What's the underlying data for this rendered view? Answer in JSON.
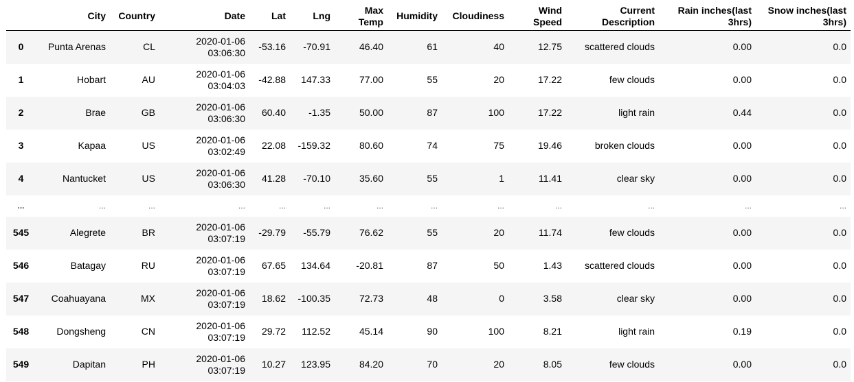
{
  "table": {
    "columns": [
      "",
      "City",
      "Country",
      "Date",
      "Lat",
      "Lng",
      "Max Temp",
      "Humidity",
      "Cloudiness",
      "Wind Speed",
      "Current Description",
      "Rain inches(last 3hrs)",
      "Snow inches(last 3hrs)"
    ],
    "rows": [
      [
        "0",
        "Punta Arenas",
        "CL",
        "2020-01-06 03:06:30",
        "-53.16",
        "-70.91",
        "46.40",
        "61",
        "40",
        "12.75",
        "scattered clouds",
        "0.00",
        "0.0"
      ],
      [
        "1",
        "Hobart",
        "AU",
        "2020-01-06 03:04:03",
        "-42.88",
        "147.33",
        "77.00",
        "55",
        "20",
        "17.22",
        "few clouds",
        "0.00",
        "0.0"
      ],
      [
        "2",
        "Brae",
        "GB",
        "2020-01-06 03:06:30",
        "60.40",
        "-1.35",
        "50.00",
        "87",
        "100",
        "17.22",
        "light rain",
        "0.44",
        "0.0"
      ],
      [
        "3",
        "Kapaa",
        "US",
        "2020-01-06 03:02:49",
        "22.08",
        "-159.32",
        "80.60",
        "74",
        "75",
        "19.46",
        "broken clouds",
        "0.00",
        "0.0"
      ],
      [
        "4",
        "Nantucket",
        "US",
        "2020-01-06 03:06:30",
        "41.28",
        "-70.10",
        "35.60",
        "55",
        "1",
        "11.41",
        "clear sky",
        "0.00",
        "0.0"
      ],
      [
        "...",
        "...",
        "...",
        "...",
        "...",
        "...",
        "...",
        "...",
        "...",
        "...",
        "...",
        "...",
        "..."
      ],
      [
        "545",
        "Alegrete",
        "BR",
        "2020-01-06 03:07:19",
        "-29.79",
        "-55.79",
        "76.62",
        "55",
        "20",
        "11.74",
        "few clouds",
        "0.00",
        "0.0"
      ],
      [
        "546",
        "Batagay",
        "RU",
        "2020-01-06 03:07:19",
        "67.65",
        "134.64",
        "-20.81",
        "87",
        "50",
        "1.43",
        "scattered clouds",
        "0.00",
        "0.0"
      ],
      [
        "547",
        "Coahuayana",
        "MX",
        "2020-01-06 03:07:19",
        "18.62",
        "-100.35",
        "72.73",
        "48",
        "0",
        "3.58",
        "clear sky",
        "0.00",
        "0.0"
      ],
      [
        "548",
        "Dongsheng",
        "CN",
        "2020-01-06 03:07:19",
        "29.72",
        "112.52",
        "45.14",
        "90",
        "100",
        "8.21",
        "light rain",
        "0.19",
        "0.0"
      ],
      [
        "549",
        "Dapitan",
        "PH",
        "2020-01-06 03:07:19",
        "10.27",
        "123.95",
        "84.20",
        "70",
        "20",
        "8.05",
        "few clouds",
        "0.00",
        "0.0"
      ]
    ]
  }
}
